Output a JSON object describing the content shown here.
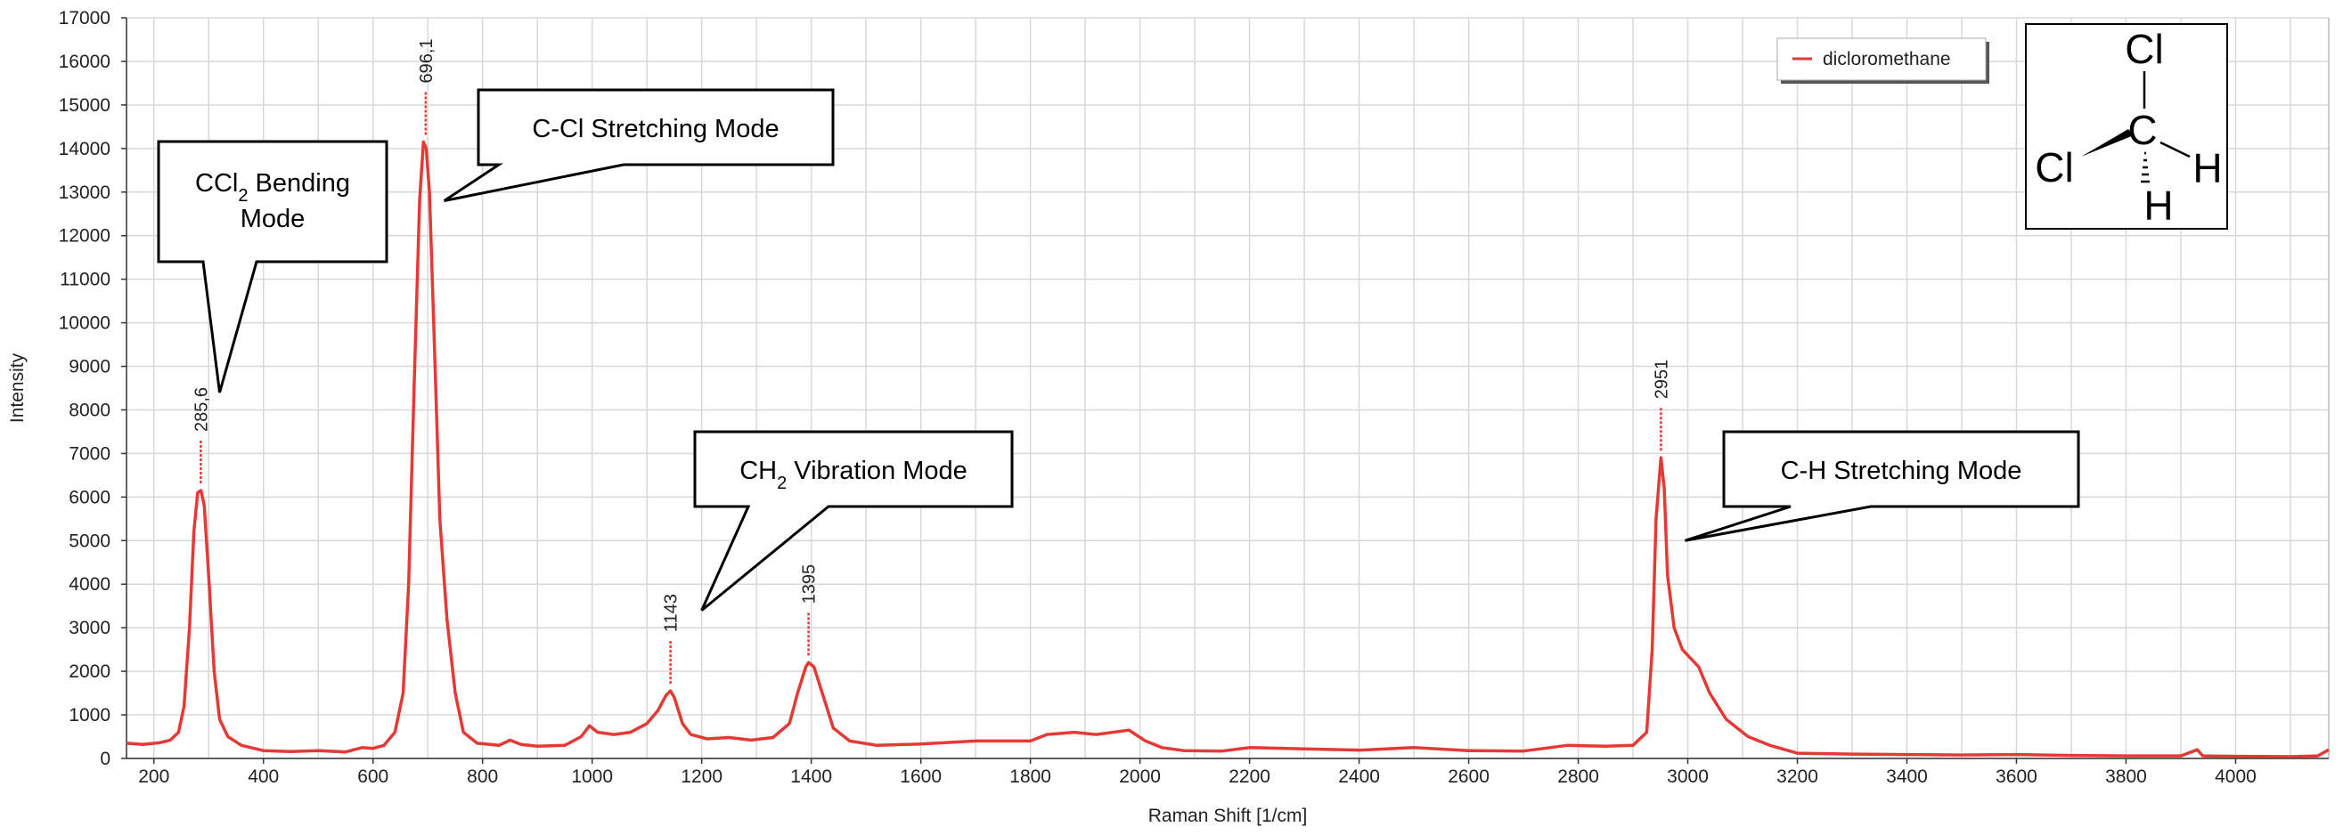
{
  "chart_data": {
    "type": "line",
    "xlabel": "Raman Shift [1/cm]",
    "ylabel": "Intensity",
    "xlim": [
      150,
      4170
    ],
    "ylim": [
      0,
      17000
    ],
    "x_ticks": [
      200,
      400,
      600,
      800,
      1000,
      1200,
      1400,
      1600,
      1800,
      2000,
      2200,
      2400,
      2600,
      2800,
      3000,
      3200,
      3400,
      3600,
      3800,
      4000
    ],
    "y_ticks": [
      0,
      1000,
      2000,
      3000,
      4000,
      5000,
      6000,
      7000,
      8000,
      9000,
      10000,
      11000,
      12000,
      13000,
      14000,
      15000,
      16000,
      17000
    ],
    "x_minor_step": 100,
    "grid": true,
    "legend_position": "top-right",
    "series": [
      {
        "name": "dicloromethane",
        "color": "#e53935",
        "points": [
          [
            150,
            350
          ],
          [
            180,
            320
          ],
          [
            210,
            360
          ],
          [
            230,
            420
          ],
          [
            245,
            600
          ],
          [
            255,
            1200
          ],
          [
            265,
            3000
          ],
          [
            273,
            5200
          ],
          [
            280,
            6100
          ],
          [
            286,
            6150
          ],
          [
            292,
            5800
          ],
          [
            300,
            4200
          ],
          [
            310,
            2000
          ],
          [
            320,
            900
          ],
          [
            335,
            500
          ],
          [
            360,
            300
          ],
          [
            400,
            180
          ],
          [
            450,
            160
          ],
          [
            500,
            180
          ],
          [
            550,
            150
          ],
          [
            580,
            250
          ],
          [
            600,
            230
          ],
          [
            620,
            300
          ],
          [
            640,
            600
          ],
          [
            655,
            1500
          ],
          [
            665,
            4000
          ],
          [
            675,
            8500
          ],
          [
            685,
            12800
          ],
          [
            692,
            14150
          ],
          [
            697,
            14000
          ],
          [
            703,
            13000
          ],
          [
            712,
            9500
          ],
          [
            722,
            5500
          ],
          [
            735,
            3200
          ],
          [
            750,
            1500
          ],
          [
            765,
            600
          ],
          [
            790,
            350
          ],
          [
            830,
            300
          ],
          [
            850,
            420
          ],
          [
            870,
            320
          ],
          [
            900,
            280
          ],
          [
            950,
            300
          ],
          [
            980,
            500
          ],
          [
            995,
            750
          ],
          [
            1010,
            600
          ],
          [
            1040,
            550
          ],
          [
            1070,
            600
          ],
          [
            1100,
            800
          ],
          [
            1120,
            1100
          ],
          [
            1135,
            1450
          ],
          [
            1143,
            1550
          ],
          [
            1150,
            1400
          ],
          [
            1165,
            800
          ],
          [
            1180,
            550
          ],
          [
            1210,
            450
          ],
          [
            1250,
            480
          ],
          [
            1290,
            420
          ],
          [
            1330,
            480
          ],
          [
            1360,
            800
          ],
          [
            1375,
            1500
          ],
          [
            1390,
            2100
          ],
          [
            1395,
            2200
          ],
          [
            1405,
            2100
          ],
          [
            1420,
            1500
          ],
          [
            1440,
            700
          ],
          [
            1470,
            400
          ],
          [
            1520,
            300
          ],
          [
            1600,
            330
          ],
          [
            1700,
            400
          ],
          [
            1800,
            400
          ],
          [
            1830,
            550
          ],
          [
            1880,
            600
          ],
          [
            1920,
            550
          ],
          [
            1980,
            650
          ],
          [
            2010,
            400
          ],
          [
            2040,
            250
          ],
          [
            2080,
            180
          ],
          [
            2150,
            170
          ],
          [
            2200,
            250
          ],
          [
            2300,
            220
          ],
          [
            2400,
            190
          ],
          [
            2500,
            250
          ],
          [
            2600,
            180
          ],
          [
            2700,
            170
          ],
          [
            2780,
            300
          ],
          [
            2850,
            280
          ],
          [
            2900,
            300
          ],
          [
            2925,
            600
          ],
          [
            2935,
            2500
          ],
          [
            2942,
            5500
          ],
          [
            2951,
            6900
          ],
          [
            2957,
            6200
          ],
          [
            2963,
            4200
          ],
          [
            2975,
            3000
          ],
          [
            2990,
            2500
          ],
          [
            3005,
            2300
          ],
          [
            3020,
            2100
          ],
          [
            3040,
            1500
          ],
          [
            3070,
            900
          ],
          [
            3110,
            500
          ],
          [
            3150,
            300
          ],
          [
            3200,
            120
          ],
          [
            3300,
            100
          ],
          [
            3400,
            90
          ],
          [
            3500,
            80
          ],
          [
            3600,
            90
          ],
          [
            3700,
            70
          ],
          [
            3800,
            60
          ],
          [
            3900,
            60
          ],
          [
            3930,
            200
          ],
          [
            3940,
            60
          ],
          [
            4000,
            50
          ],
          [
            4100,
            40
          ],
          [
            4150,
            60
          ],
          [
            4170,
            200
          ]
        ]
      }
    ],
    "peaks": [
      {
        "x": 285.6,
        "y": 6150,
        "label": "285,6"
      },
      {
        "x": 696.1,
        "y": 14150,
        "label": "696,1"
      },
      {
        "x": 1143,
        "y": 1550,
        "label": "1143"
      },
      {
        "x": 1395,
        "y": 2200,
        "label": "1395"
      },
      {
        "x": 2951,
        "y": 6900,
        "label": "2951"
      }
    ],
    "annotations": [
      {
        "id": "ccl2-bending",
        "main": "CCl",
        "sub": "2",
        "rest": " Bending",
        "line2": "Mode",
        "tip": {
          "x": 320,
          "y": 8400
        }
      },
      {
        "id": "ccl-stretching",
        "main": "C-Cl Stretching Mode",
        "tip": {
          "x": 730,
          "y": 12800
        }
      },
      {
        "id": "ch2-vibration",
        "main": "CH",
        "sub": "2",
        "rest": " Vibration Mode",
        "tip": {
          "x": 1200,
          "y": 3400
        }
      },
      {
        "id": "ch-stretching",
        "main": "C-H Stretching Mode",
        "tip": {
          "x": 2995,
          "y": 5000
        }
      }
    ]
  },
  "molecule": {
    "atoms": {
      "top": "Cl",
      "left": "Cl",
      "center": "C",
      "right": "H",
      "bottom": "H"
    }
  }
}
